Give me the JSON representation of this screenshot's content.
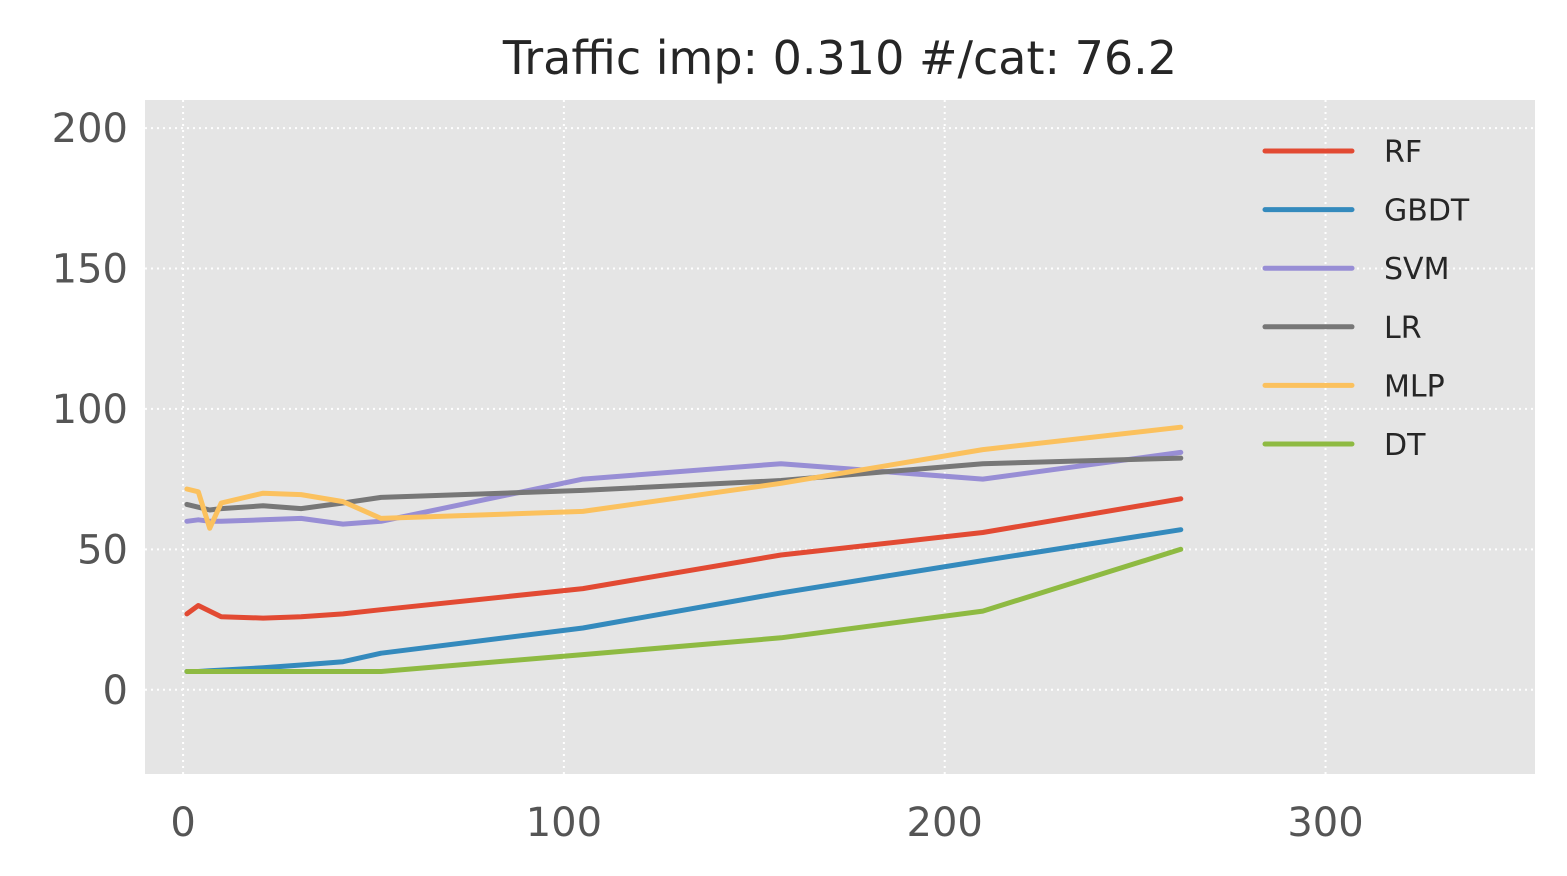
{
  "chart_data": {
    "type": "line",
    "title": "Traffic imp: 0.310 #/cat: 76.2",
    "xlabel": "",
    "ylabel": "",
    "xlim": [
      -10,
      355
    ],
    "ylim": [
      -30,
      210
    ],
    "xticks": [
      0,
      100,
      200,
      300
    ],
    "yticks": [
      0,
      50,
      100,
      150,
      200
    ],
    "grid": true,
    "legend_position": "top-right",
    "series": [
      {
        "name": "RF",
        "color": "#E24A33",
        "x": [
          1,
          4,
          7,
          10,
          21,
          31,
          42,
          52,
          105,
          157,
          210,
          262
        ],
        "y": [
          27,
          30,
          28,
          26,
          25.5,
          26,
          27,
          28.5,
          36,
          48,
          56,
          68
        ]
      },
      {
        "name": "GBDT",
        "color": "#348ABD",
        "x": [
          1,
          4,
          7,
          10,
          21,
          31,
          42,
          52,
          105,
          157,
          210,
          262
        ],
        "y": [
          6.5,
          6.5,
          6.8,
          7,
          7.8,
          8.8,
          10,
          13,
          22,
          34.5,
          46,
          57
        ]
      },
      {
        "name": "SVM",
        "color": "#988ED5",
        "x": [
          1,
          4,
          7,
          10,
          21,
          31,
          42,
          52,
          105,
          157,
          210,
          262
        ],
        "y": [
          60,
          60.5,
          60,
          60,
          60.5,
          61,
          59,
          60,
          75,
          80.5,
          75,
          84.5
        ]
      },
      {
        "name": "LR",
        "color": "#777777",
        "x": [
          1,
          4,
          7,
          10,
          21,
          31,
          42,
          52,
          105,
          157,
          210,
          262
        ],
        "y": [
          66,
          65,
          64,
          64.5,
          65.5,
          64.5,
          66.5,
          68.5,
          71,
          74.5,
          80.5,
          82.5
        ]
      },
      {
        "name": "MLP",
        "color": "#FBC15E",
        "x": [
          1,
          4,
          7,
          10,
          21,
          31,
          42,
          52,
          105,
          157,
          210,
          262
        ],
        "y": [
          71.5,
          70.5,
          57.5,
          66.5,
          70,
          69.5,
          67,
          61,
          63.5,
          73.5,
          85.5,
          93.5
        ]
      },
      {
        "name": "DT",
        "color": "#8EBA42",
        "x": [
          1,
          4,
          7,
          10,
          21,
          31,
          42,
          52,
          105,
          157,
          210,
          262
        ],
        "y": [
          6.5,
          6.5,
          6.5,
          6.5,
          6.5,
          6.5,
          6.5,
          6.5,
          12.5,
          18.5,
          28,
          50
        ]
      }
    ]
  }
}
